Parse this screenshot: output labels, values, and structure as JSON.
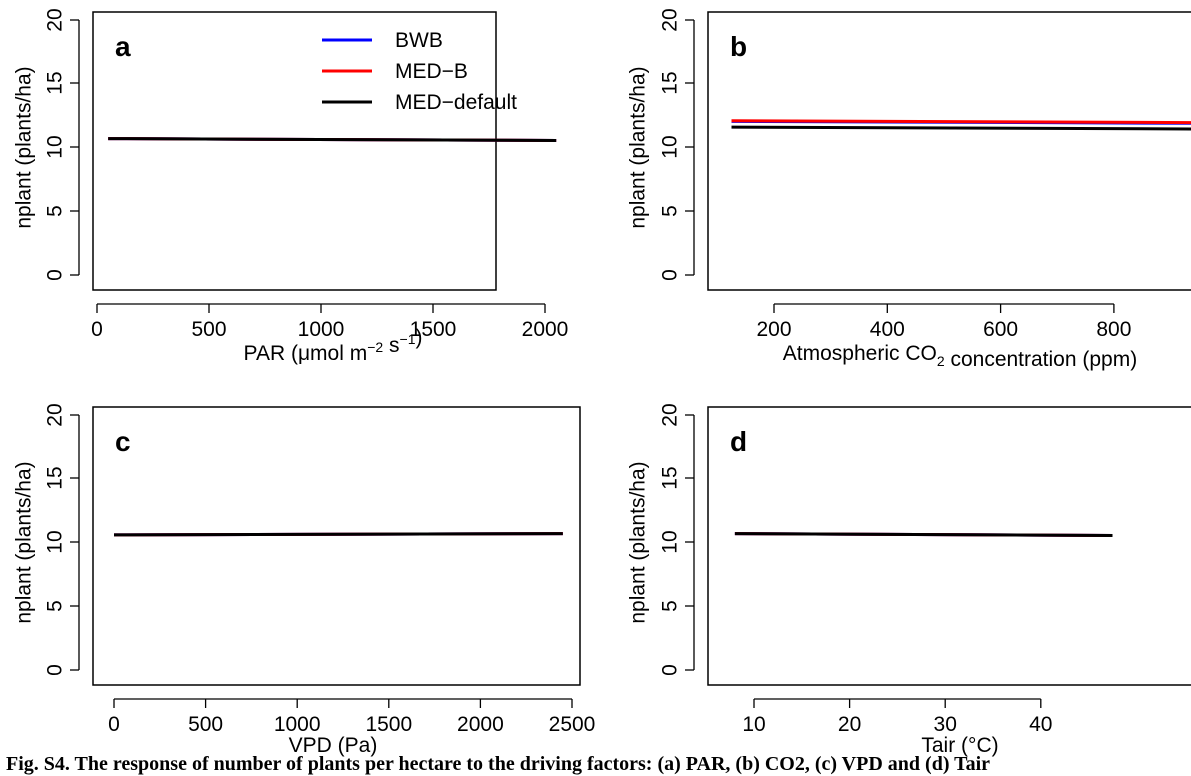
{
  "figure": {
    "caption": "Fig. S4. The response of number of plants per hectare to the driving factors: (a) PAR, (b) CO2, (c) VPD and (d) Tair"
  },
  "legend": {
    "entries": [
      {
        "label": "BWB",
        "color": "#0000ff"
      },
      {
        "label": "MED−B",
        "color": "#ff0000"
      },
      {
        "label": "MED−default",
        "color": "#000000"
      }
    ]
  },
  "chart_data": [
    {
      "type": "line",
      "panel_label": "a",
      "xlabel": "PAR (μmol m⁻² s⁻¹)",
      "ylabel": "nplant (plants/ha)",
      "xlim": [
        0,
        2100
      ],
      "ylim": [
        0,
        20
      ],
      "xticks": [
        "0",
        "500",
        "1000",
        "1500",
        "2000"
      ],
      "yticks": [
        "0",
        "5",
        "10",
        "15",
        "20"
      ],
      "x": [
        50,
        2050
      ],
      "series": [
        {
          "name": "BWB",
          "color": "#0000ff",
          "values": [
            10.7,
            10.55
          ]
        },
        {
          "name": "MED−B",
          "color": "#ff0000",
          "values": [
            10.7,
            10.55
          ]
        },
        {
          "name": "MED−default",
          "color": "#000000",
          "values": [
            10.7,
            10.55
          ]
        }
      ]
    },
    {
      "type": "line",
      "panel_label": "b",
      "xlabel": "Atmospheric CO₂ concentration (ppm)",
      "ylabel": "nplant (plants/ha)",
      "xlim": [
        100,
        950
      ],
      "ylim": [
        0,
        20
      ],
      "xticks": [
        "200",
        "400",
        "600",
        "800"
      ],
      "yticks": [
        "0",
        "5",
        "10",
        "15",
        "20"
      ],
      "x": [
        125,
        950
      ],
      "series": [
        {
          "name": "BWB",
          "color": "#0000ff",
          "values": [
            12.05,
            11.9
          ]
        },
        {
          "name": "MED−B",
          "color": "#ff0000",
          "values": [
            12.1,
            11.95
          ]
        },
        {
          "name": "MED−default",
          "color": "#000000",
          "values": [
            11.6,
            11.45
          ]
        }
      ]
    },
    {
      "type": "line",
      "panel_label": "c",
      "xlabel": "VPD (Pa)",
      "ylabel": "nplant (plants/ha)",
      "xlim": [
        0,
        2500
      ],
      "ylim": [
        0,
        20
      ],
      "xticks": [
        "0",
        "500",
        "1000",
        "1500",
        "2000",
        "2500"
      ],
      "yticks": [
        "0",
        "5",
        "10",
        "15",
        "20"
      ],
      "x": [
        0,
        2450
      ],
      "series": [
        {
          "name": "BWB",
          "color": "#0000ff",
          "values": [
            10.6,
            10.7
          ]
        },
        {
          "name": "MED−B",
          "color": "#ff0000",
          "values": [
            10.6,
            10.7
          ]
        },
        {
          "name": "MED−default",
          "color": "#000000",
          "values": [
            10.6,
            10.7
          ]
        }
      ]
    },
    {
      "type": "line",
      "panel_label": "d",
      "xlabel": "Tair (°C)",
      "ylabel": "nplant (plants/ha)",
      "xlim": [
        7,
        47.5
      ],
      "ylim": [
        0,
        20
      ],
      "xticks": [
        "10",
        "20",
        "30",
        "40"
      ],
      "yticks": [
        "0",
        "5",
        "10",
        "15",
        "20"
      ],
      "x": [
        8,
        47.5
      ],
      "series": [
        {
          "name": "BWB",
          "color": "#0000ff",
          "values": [
            10.7,
            10.55
          ]
        },
        {
          "name": "MED−B",
          "color": "#ff0000",
          "values": [
            10.7,
            10.55
          ]
        },
        {
          "name": "MED−default",
          "color": "#000000",
          "values": [
            10.7,
            10.55
          ]
        }
      ]
    }
  ]
}
